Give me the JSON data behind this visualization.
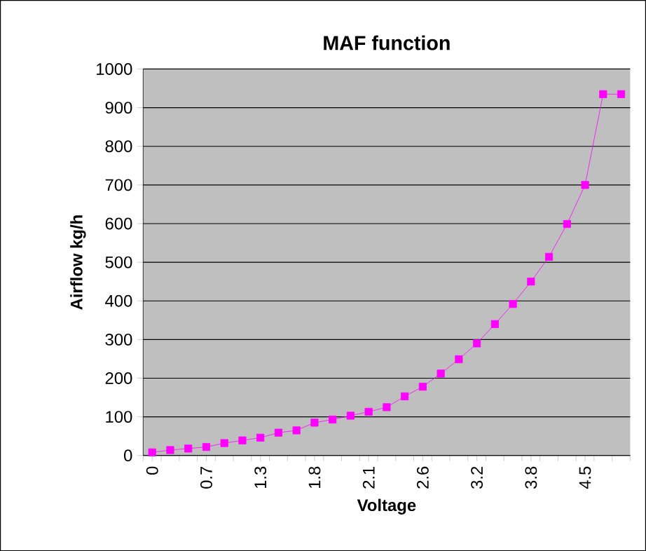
{
  "chart_data": {
    "type": "line",
    "title": "MAF function",
    "xlabel": "Voltage",
    "ylabel": "Airflow kg/h",
    "categories": [
      "0",
      null,
      null,
      "0.7",
      null,
      null,
      "1.3",
      null,
      null,
      "1.8",
      null,
      null,
      "2.1",
      null,
      null,
      "2.6",
      null,
      null,
      "3.2",
      null,
      null,
      "3.8",
      null,
      null,
      "4.5",
      null,
      null
    ],
    "series": [
      {
        "color": "#ff00ff",
        "values": [
          8,
          14,
          18,
          22,
          32,
          39,
          46,
          59,
          65,
          85,
          93,
          103,
          113,
          125,
          153,
          178,
          212,
          249,
          290,
          340,
          392,
          450,
          514,
          599,
          700,
          935,
          935
        ]
      }
    ],
    "ylim": [
      0,
      1000
    ],
    "yticks": [
      0,
      100,
      200,
      300,
      400,
      500,
      600,
      700,
      800,
      900,
      1000
    ],
    "grid": "y",
    "marker": "square",
    "line_style": "solid"
  }
}
